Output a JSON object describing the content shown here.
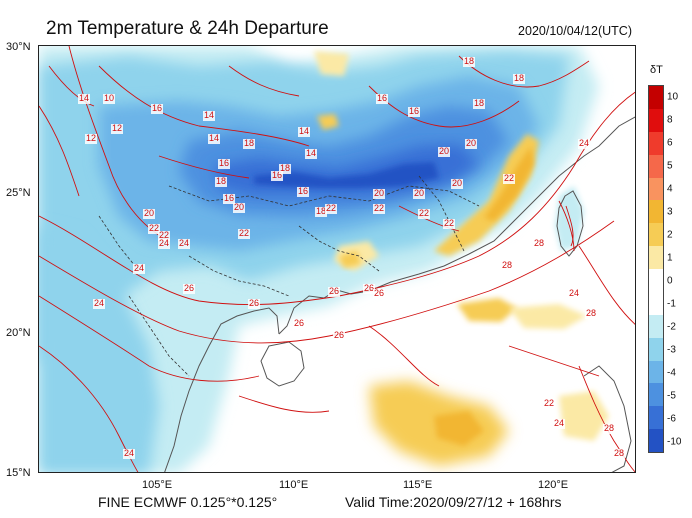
{
  "header": {
    "title": "2m Temperature & 24h Departure",
    "datetime": "2020/10/04/12(UTC)"
  },
  "axes": {
    "lat_labels": [
      "30°N",
      "25°N",
      "20°N",
      "15°N"
    ],
    "lon_labels": [
      "105°E",
      "110°E",
      "115°E",
      "120°E"
    ]
  },
  "footer": {
    "model": "FINE ECMWF 0.125°*0.125°",
    "valid": "Valid Time:2020/09/27/12 + 168hrs"
  },
  "legend": {
    "title": "δT",
    "levels": [
      {
        "label": "10",
        "color": "#c40000"
      },
      {
        "label": "8",
        "color": "#e00d0d"
      },
      {
        "label": "6",
        "color": "#ef3b2c"
      },
      {
        "label": "5",
        "color": "#f5684a"
      },
      {
        "label": "4",
        "color": "#f9935f"
      },
      {
        "label": "3",
        "color": "#f2b632"
      },
      {
        "label": "2",
        "color": "#f6cc55"
      },
      {
        "label": "1",
        "color": "#fbe9a5"
      },
      {
        "label": "0",
        "color": "#ffffff"
      },
      {
        "label": "-1",
        "color": "#ffffff"
      },
      {
        "label": "-2",
        "color": "#c4ecf3"
      },
      {
        "label": "-3",
        "color": "#8fd3ec"
      },
      {
        "label": "-4",
        "color": "#6cb4e8"
      },
      {
        "label": "-5",
        "color": "#4d91e0"
      },
      {
        "label": "-6",
        "color": "#3770d6"
      },
      {
        "label": "-10",
        "color": "#2352c4"
      }
    ]
  },
  "contour_labels": [
    "18",
    "18",
    "18",
    "16",
    "16",
    "14",
    "14",
    "14",
    "14",
    "14",
    "12",
    "12",
    "10",
    "16",
    "18",
    "16",
    "16",
    "16",
    "16",
    "18",
    "18",
    "18",
    "20",
    "20",
    "20",
    "20",
    "20",
    "20",
    "20",
    "22",
    "22",
    "22",
    "22",
    "22",
    "22",
    "22",
    "22",
    "24",
    "24",
    "24",
    "24",
    "24",
    "26",
    "26",
    "26",
    "26",
    "26",
    "26",
    "28",
    "28",
    "28",
    "28",
    "28",
    "24",
    "22",
    "24",
    "26",
    "24"
  ]
}
